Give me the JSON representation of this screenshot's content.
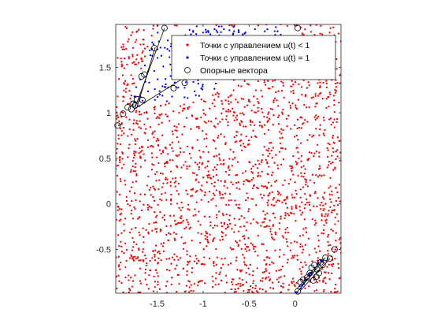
{
  "chart_data": {
    "type": "scatter",
    "title": "",
    "xlabel": "",
    "ylabel": "",
    "xlim": [
      -1.95,
      0.5
    ],
    "ylim": [
      -0.98,
      1.97
    ],
    "xticks": [
      -1.5,
      -1,
      -0.5,
      0
    ],
    "yticks": [
      -0.5,
      0,
      0.5,
      1,
      1.5
    ],
    "xtick_labels": [
      "-1.5",
      "-1",
      "-0.5",
      "0"
    ],
    "ytick_labels": [
      "-0.5",
      "0",
      "0.5",
      "1",
      "1.5"
    ],
    "grid": false,
    "legend_position": "top-right",
    "series": [
      {
        "name": "Точки с управлением u(t) < 1",
        "marker": "dot",
        "color": "#ff0000",
        "distribution": "uniform_fill_except_regions",
        "count": 1900
      },
      {
        "name": "Точки с управлением u(t) = 1",
        "marker": "dot",
        "color": "#0000ff",
        "regions": [
          {
            "polygon": [
              [
                -1.8,
                1.05
              ],
              [
                -1.52,
                1.95
              ],
              [
                0.04,
                1.95
              ],
              [
                -1.0,
                1.17
              ]
            ],
            "count": 220
          },
          {
            "polygon": [
              [
                0.0,
                -0.97
              ],
              [
                0.3,
                -0.57
              ],
              [
                0.32,
                -0.61
              ],
              [
                0.03,
                -0.97
              ]
            ],
            "count": 30
          }
        ]
      },
      {
        "name": "Опорные вектора",
        "marker": "circle",
        "color": "#000000",
        "points": [
          [
            -1.93,
            0.86
          ],
          [
            -1.87,
            0.99
          ],
          [
            -1.82,
            1.06
          ],
          [
            -1.78,
            1.04
          ],
          [
            -1.76,
            1.1
          ],
          [
            -1.74,
            1.08
          ],
          [
            -1.72,
            1.15
          ],
          [
            -1.66,
            1.14
          ],
          [
            -1.67,
            1.4
          ],
          [
            -1.64,
            1.42
          ],
          [
            -1.53,
            1.71
          ],
          [
            -1.42,
            1.93
          ],
          [
            -1.32,
            1.27
          ],
          [
            -1.2,
            1.33
          ],
          [
            -1.1,
            1.41
          ],
          [
            -0.98,
            1.5
          ],
          [
            -0.87,
            1.58
          ],
          [
            0.03,
            1.93
          ],
          [
            0.03,
            -0.96
          ],
          [
            0.06,
            -0.86
          ],
          [
            0.09,
            -0.83
          ],
          [
            0.13,
            -0.81
          ],
          [
            0.16,
            -0.76
          ],
          [
            0.18,
            -0.7
          ],
          [
            0.2,
            -0.84
          ],
          [
            0.21,
            -0.67
          ],
          [
            0.23,
            -0.8
          ],
          [
            0.24,
            -0.72
          ],
          [
            0.26,
            -0.76
          ],
          [
            0.28,
            -0.64
          ],
          [
            0.3,
            -0.67
          ],
          [
            0.33,
            -0.59
          ],
          [
            0.38,
            -0.6
          ],
          [
            0.43,
            -0.5
          ]
        ],
        "outline": [
          [
            [
              -1.75,
              1.03
            ],
            [
              -1.42,
              1.93
            ]
          ],
          [
            [
              -1.72,
              1.06
            ],
            [
              -1.52,
              1.72
            ]
          ],
          [
            [
              -1.75,
              1.04
            ],
            [
              -0.9,
              1.58
            ]
          ],
          [
            [
              0.03,
              -0.96
            ],
            [
              0.33,
              -0.59
            ]
          ],
          [
            [
              0.06,
              -0.95
            ],
            [
              0.38,
              -0.6
            ]
          ],
          [
            [
              0.02,
              -0.93
            ],
            [
              0.29,
              -0.62
            ]
          ]
        ]
      }
    ]
  }
}
